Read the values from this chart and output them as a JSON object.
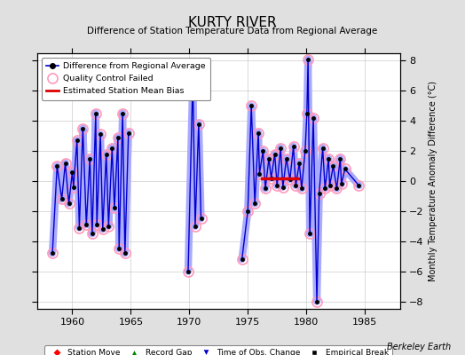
{
  "title": "KURTY RIVER",
  "subtitle": "Difference of Station Temperature Data from Regional Average",
  "ylabel_right": "Monthly Temperature Anomaly Difference (°C)",
  "xlim": [
    1957.0,
    1988.0
  ],
  "ylim": [
    -8.5,
    8.5
  ],
  "yticks": [
    -8,
    -6,
    -4,
    -2,
    0,
    2,
    4,
    6,
    8
  ],
  "xticks": [
    1960,
    1965,
    1970,
    1975,
    1980,
    1985
  ],
  "bg_color": "#e0e0e0",
  "plot_bg_color": "#ffffff",
  "grid_color": "#cccccc",
  "watermark": "Berkeley Earth",
  "line_color": "#0000cc",
  "shadow_color": "#aaaaff",
  "dot_color": "#000000",
  "qc_color": "#ff99bb",
  "bias_color": "#dd0000",
  "bias_segments": [
    [
      1976.2,
      1979.3
    ]
  ],
  "bias_y": 0.15,
  "segments": [
    [
      [
        1958.3,
        -4.8
      ],
      [
        1958.7,
        1.0
      ],
      [
        1959.1,
        -1.2
      ],
      [
        1959.4,
        1.2
      ],
      [
        1959.7,
        -1.5
      ],
      [
        1960.0,
        0.6
      ],
      [
        1960.1,
        -0.4
      ],
      [
        1960.4,
        2.7
      ],
      [
        1960.6,
        -3.1
      ],
      [
        1960.9,
        3.5
      ],
      [
        1961.2,
        -2.9
      ],
      [
        1961.5,
        1.5
      ],
      [
        1961.7,
        -3.5
      ],
      [
        1962.0,
        4.5
      ],
      [
        1962.1,
        -2.9
      ],
      [
        1962.4,
        3.1
      ],
      [
        1962.6,
        -3.2
      ],
      [
        1962.9,
        1.8
      ],
      [
        1963.1,
        -3.0
      ],
      [
        1963.4,
        2.2
      ],
      [
        1963.6,
        -1.8
      ],
      [
        1963.9,
        2.9
      ],
      [
        1964.0,
        -4.5
      ],
      [
        1964.3,
        4.5
      ],
      [
        1964.5,
        -4.8
      ],
      [
        1964.8,
        3.2
      ]
    ],
    [
      [
        1969.9,
        -6.0
      ],
      [
        1970.3,
        6.9
      ],
      [
        1970.5,
        -3.0
      ],
      [
        1970.8,
        3.8
      ],
      [
        1971.0,
        -2.5
      ]
    ],
    [
      [
        1974.5,
        -5.2
      ],
      [
        1975.0,
        -2.0
      ],
      [
        1975.3,
        5.0
      ],
      [
        1975.6,
        -1.5
      ],
      [
        1975.9,
        3.2
      ],
      [
        1976.0,
        0.5
      ],
      [
        1976.3,
        2.0
      ],
      [
        1976.5,
        -0.5
      ],
      [
        1976.8,
        1.5
      ],
      [
        1977.0,
        0.2
      ],
      [
        1977.3,
        1.8
      ],
      [
        1977.5,
        -0.3
      ],
      [
        1977.8,
        2.2
      ],
      [
        1978.0,
        -0.4
      ],
      [
        1978.3,
        1.5
      ],
      [
        1978.6,
        0.1
      ],
      [
        1978.9,
        2.3
      ],
      [
        1979.1,
        -0.3
      ],
      [
        1979.4,
        1.2
      ],
      [
        1979.6,
        -0.5
      ],
      [
        1979.9,
        2.0
      ],
      [
        1980.05,
        4.5
      ],
      [
        1980.15,
        8.1
      ],
      [
        1980.3,
        -3.5
      ],
      [
        1980.6,
        4.2
      ],
      [
        1980.9,
        -8.0
      ],
      [
        1981.1,
        -0.8
      ],
      [
        1981.4,
        2.2
      ],
      [
        1981.6,
        -0.5
      ],
      [
        1981.9,
        1.5
      ],
      [
        1982.0,
        -0.3
      ],
      [
        1982.3,
        1.0
      ],
      [
        1982.6,
        -0.5
      ],
      [
        1982.9,
        1.5
      ],
      [
        1983.0,
        -0.2
      ],
      [
        1983.3,
        0.8
      ],
      [
        1984.5,
        -0.3
      ]
    ]
  ],
  "qc_all_points": true
}
